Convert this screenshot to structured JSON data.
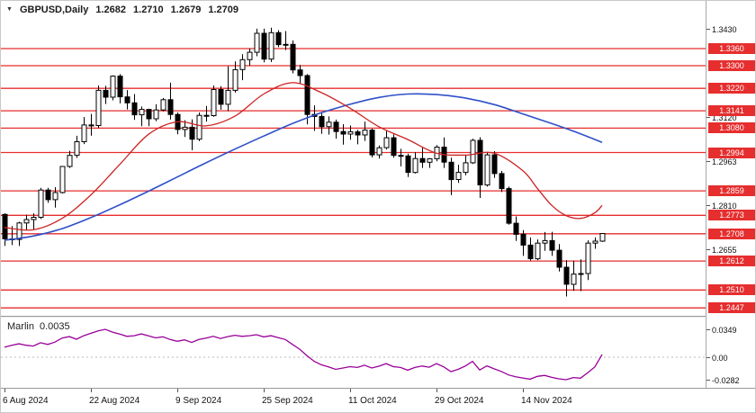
{
  "header": {
    "dropdown_icon": "▼",
    "symbol": "GBPUSD,Daily",
    "open": "1.2682",
    "high": "1.2710",
    "low": "1.2679",
    "close": "1.2709"
  },
  "indicator_window": {
    "name": "Marlin",
    "value": "0.0035",
    "axis_labels": [
      "0.0349",
      "0.00",
      "-0.0282"
    ]
  },
  "price_axis": {
    "plain_labels": [
      "1.3430",
      "1.3120",
      "1.2963",
      "1.2810",
      "1.2655"
    ]
  },
  "colors": {
    "background": "#ffffff",
    "level_line": "#e62e2e",
    "badge_bg": "#e62e2e",
    "badge_text": "#ffffff",
    "ma_blue": "#2f50c8",
    "ma_red": "#cc2222",
    "indicator_line": "#990099",
    "candle_up_fill": "#ffffff",
    "candle_down_fill": "#000000",
    "candle_stroke": "#000000",
    "zero_line": "#bbbbbb",
    "axis_text": "#111111"
  },
  "chart_data": {
    "type": "candlestick",
    "symbol": "GBPUSD",
    "timeframe": "Daily",
    "title": "GBPUSD,Daily 1.2682 1.2710 1.2679 1.2709",
    "price_levels": [
      "1.3360",
      "1.3300",
      "1.3220",
      "1.3141",
      "1.3080",
      "1.2994",
      "1.2859",
      "1.2773",
      "1.2708",
      "1.2612",
      "1.2510",
      "1.2447"
    ],
    "x_ticks": [
      {
        "index": 0,
        "label": "6 Aug 2024"
      },
      {
        "index": 12,
        "label": "22 Aug 2024"
      },
      {
        "index": 24,
        "label": "9 Sep 2024"
      },
      {
        "index": 36,
        "label": "25 Sep 2024"
      },
      {
        "index": 48,
        "label": "11 Oct 2024"
      },
      {
        "index": 60,
        "label": "29 Oct 2024"
      },
      {
        "index": 72,
        "label": "14 Nov 2024"
      }
    ],
    "candles_ohlc": [
      [
        1.2776,
        1.278,
        1.2665,
        1.269
      ],
      [
        1.269,
        1.2735,
        1.2668,
        1.2688
      ],
      [
        1.2688,
        1.275,
        1.2665,
        1.2746
      ],
      [
        1.2746,
        1.2775,
        1.272,
        1.2758
      ],
      [
        1.2758,
        1.278,
        1.2723,
        1.2766
      ],
      [
        1.2766,
        1.287,
        1.276,
        1.2862
      ],
      [
        1.2862,
        1.287,
        1.2817,
        1.2828
      ],
      [
        1.2828,
        1.2872,
        1.28,
        1.2853
      ],
      [
        1.2853,
        1.2946,
        1.285,
        1.2945
      ],
      [
        1.2945,
        1.3,
        1.294,
        1.2984
      ],
      [
        1.2984,
        1.3053,
        1.2975,
        1.3032
      ],
      [
        1.3032,
        1.3119,
        1.3024,
        1.3091
      ],
      [
        1.3091,
        1.313,
        1.3053,
        1.3089
      ],
      [
        1.3089,
        1.323,
        1.308,
        1.3213
      ],
      [
        1.3213,
        1.3229,
        1.3165,
        1.3189
      ],
      [
        1.3189,
        1.3266,
        1.3178,
        1.3263
      ],
      [
        1.3263,
        1.327,
        1.3167,
        1.319
      ],
      [
        1.319,
        1.3214,
        1.3146,
        1.3169
      ],
      [
        1.3169,
        1.32,
        1.3109,
        1.3127
      ],
      [
        1.3127,
        1.3156,
        1.3087,
        1.3146
      ],
      [
        1.3146,
        1.3148,
        1.3087,
        1.3113
      ],
      [
        1.3113,
        1.3164,
        1.3104,
        1.3144
      ],
      [
        1.3144,
        1.3186,
        1.3139,
        1.318
      ],
      [
        1.318,
        1.324,
        1.311,
        1.3128
      ],
      [
        1.3128,
        1.3135,
        1.3058,
        1.3075
      ],
      [
        1.3075,
        1.3108,
        1.3049,
        1.3083
      ],
      [
        1.3083,
        1.3111,
        1.3002,
        1.3041
      ],
      [
        1.3041,
        1.3135,
        1.3034,
        1.3125
      ],
      [
        1.3125,
        1.3158,
        1.3103,
        1.3124
      ],
      [
        1.3124,
        1.323,
        1.312,
        1.3216
      ],
      [
        1.3216,
        1.3228,
        1.3145,
        1.3164
      ],
      [
        1.3164,
        1.3298,
        1.314,
        1.3213
      ],
      [
        1.3213,
        1.3315,
        1.3205,
        1.3286
      ],
      [
        1.3286,
        1.334,
        1.3249,
        1.3321
      ],
      [
        1.3321,
        1.336,
        1.33,
        1.3347
      ],
      [
        1.3347,
        1.343,
        1.3333,
        1.3414
      ],
      [
        1.3414,
        1.343,
        1.3312,
        1.3323
      ],
      [
        1.3323,
        1.3434,
        1.3313,
        1.3416
      ],
      [
        1.3416,
        1.3425,
        1.3365,
        1.3374
      ],
      [
        1.3374,
        1.3422,
        1.3355,
        1.3375
      ],
      [
        1.3375,
        1.3389,
        1.3273,
        1.3285
      ],
      [
        1.3285,
        1.3302,
        1.3237,
        1.3265
      ],
      [
        1.3265,
        1.327,
        1.3093,
        1.3128
      ],
      [
        1.3128,
        1.316,
        1.307,
        1.3121
      ],
      [
        1.3121,
        1.3133,
        1.306,
        1.3085
      ],
      [
        1.3085,
        1.3121,
        1.3057,
        1.3101
      ],
      [
        1.3101,
        1.311,
        1.3043,
        1.3068
      ],
      [
        1.3068,
        1.3094,
        1.3022,
        1.3059
      ],
      [
        1.3059,
        1.3089,
        1.3039,
        1.3067
      ],
      [
        1.3067,
        1.3074,
        1.3023,
        1.3056
      ],
      [
        1.3056,
        1.3103,
        1.3035,
        1.3073
      ],
      [
        1.3073,
        1.3078,
        1.2977,
        1.2986
      ],
      [
        1.2986,
        1.3019,
        1.2973,
        1.3011
      ],
      [
        1.3011,
        1.307,
        1.3005,
        1.3046
      ],
      [
        1.3046,
        1.3058,
        1.2976,
        1.2984
      ],
      [
        1.2984,
        1.3007,
        1.2945,
        1.2982
      ],
      [
        1.2982,
        1.299,
        1.2908,
        1.2924
      ],
      [
        1.2924,
        1.2995,
        1.292,
        1.2973
      ],
      [
        1.2973,
        1.3011,
        1.294,
        1.296
      ],
      [
        1.296,
        1.2974,
        1.294,
        1.2972
      ],
      [
        1.2972,
        1.302,
        1.2963,
        1.3013
      ],
      [
        1.3013,
        1.3047,
        1.294,
        1.296
      ],
      [
        1.296,
        1.2976,
        1.2844,
        1.2899
      ],
      [
        1.2899,
        1.2951,
        1.2887,
        1.2924
      ],
      [
        1.2924,
        1.2984,
        1.2914,
        1.2958
      ],
      [
        1.2958,
        1.3043,
        1.2954,
        1.3037
      ],
      [
        1.3037,
        1.3048,
        1.2834,
        1.288
      ],
      [
        1.288,
        1.2996,
        1.2874,
        1.2986
      ],
      [
        1.2986,
        1.2999,
        1.2905,
        1.292
      ],
      [
        1.292,
        1.2929,
        1.2855,
        1.2867
      ],
      [
        1.2867,
        1.2874,
        1.274,
        1.2745
      ],
      [
        1.2745,
        1.2769,
        1.2683,
        1.2706
      ],
      [
        1.2706,
        1.2721,
        1.263,
        1.2668
      ],
      [
        1.2668,
        1.2695,
        1.2614,
        1.262
      ],
      [
        1.262,
        1.2688,
        1.2615,
        1.2675
      ],
      [
        1.2675,
        1.2714,
        1.2648,
        1.2684
      ],
      [
        1.2684,
        1.2715,
        1.263,
        1.265
      ],
      [
        1.265,
        1.2672,
        1.2575,
        1.259
      ],
      [
        1.259,
        1.2615,
        1.2487,
        1.253
      ],
      [
        1.253,
        1.2613,
        1.2507,
        1.2566
      ],
      [
        1.2566,
        1.2618,
        1.2506,
        1.2568
      ],
      [
        1.2568,
        1.2685,
        1.2545,
        1.2675
      ],
      [
        1.2675,
        1.2695,
        1.2655,
        1.2682
      ],
      [
        1.2682,
        1.271,
        1.2679,
        1.2709
      ]
    ],
    "ma_blue_points": [
      [
        0,
        1.2685
      ],
      [
        4,
        1.27
      ],
      [
        8,
        1.2726
      ],
      [
        12,
        1.2765
      ],
      [
        16,
        1.281
      ],
      [
        20,
        1.2858
      ],
      [
        24,
        1.2908
      ],
      [
        28,
        1.2958
      ],
      [
        32,
        1.3006
      ],
      [
        36,
        1.3052
      ],
      [
        40,
        1.3096
      ],
      [
        44,
        1.3134
      ],
      [
        48,
        1.3164
      ],
      [
        52,
        1.3188
      ],
      [
        56,
        1.32
      ],
      [
        60,
        1.3198
      ],
      [
        64,
        1.3186
      ],
      [
        68,
        1.3163
      ],
      [
        72,
        1.313
      ],
      [
        76,
        1.3096
      ],
      [
        80,
        1.306
      ],
      [
        83,
        1.303
      ]
    ],
    "ma_red_points": [
      [
        0,
        1.273
      ],
      [
        4,
        1.2722
      ],
      [
        8,
        1.2762
      ],
      [
        12,
        1.2845
      ],
      [
        16,
        1.2952
      ],
      [
        20,
        1.3058
      ],
      [
        24,
        1.3102
      ],
      [
        28,
        1.3088
      ],
      [
        32,
        1.3122
      ],
      [
        36,
        1.32
      ],
      [
        40,
        1.324
      ],
      [
        44,
        1.3205
      ],
      [
        48,
        1.315
      ],
      [
        52,
        1.3085
      ],
      [
        56,
        1.304
      ],
      [
        60,
        1.2992
      ],
      [
        64,
        1.2985
      ],
      [
        68,
        1.2992
      ],
      [
        72,
        1.293
      ],
      [
        74,
        1.2868
      ],
      [
        76,
        1.2808
      ],
      [
        78,
        1.2772
      ],
      [
        80,
        1.2762
      ],
      [
        82,
        1.2782
      ],
      [
        83,
        1.2808
      ]
    ],
    "indicator_series": [
      0.0125,
      0.015,
      0.0168,
      0.015,
      0.014,
      0.0182,
      0.016,
      0.019,
      0.024,
      0.0258,
      0.0225,
      0.027,
      0.03,
      0.033,
      0.0349,
      0.0315,
      0.029,
      0.0262,
      0.027,
      0.0292,
      0.0268,
      0.0242,
      0.0256,
      0.0222,
      0.02,
      0.0218,
      0.0185,
      0.0222,
      0.024,
      0.0262,
      0.0235,
      0.0258,
      0.0275,
      0.0262,
      0.027,
      0.0282,
      0.0255,
      0.027,
      0.0245,
      0.0222,
      0.016,
      0.01,
      0.002,
      -0.005,
      -0.0095,
      -0.012,
      -0.0152,
      -0.0135,
      -0.0118,
      -0.0128,
      -0.01,
      -0.0135,
      -0.0112,
      -0.008,
      -0.0118,
      -0.0128,
      -0.0162,
      -0.0128,
      -0.011,
      -0.0125,
      -0.008,
      -0.012,
      -0.018,
      -0.0152,
      -0.011,
      -0.0052,
      -0.016,
      -0.0108,
      -0.0145,
      -0.0178,
      -0.0222,
      -0.0245,
      -0.026,
      -0.0275,
      -0.024,
      -0.0228,
      -0.0252,
      -0.027,
      -0.0282,
      -0.0255,
      -0.0262,
      -0.0195,
      -0.012,
      0.0035
    ],
    "scales": {
      "price_top": 1.3528,
      "price_bottom": 1.2419,
      "indicator_top": 0.0496,
      "indicator_bottom": -0.0383,
      "x0": 4,
      "dx": 8
    }
  }
}
